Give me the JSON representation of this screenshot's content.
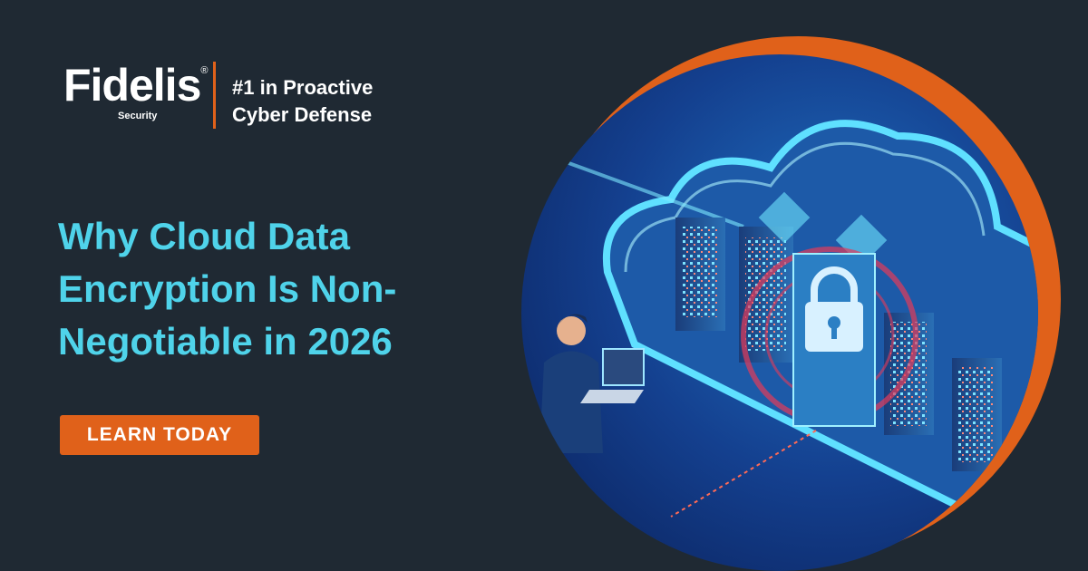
{
  "logo": {
    "brand": "Fidelis",
    "mark": "®",
    "sub": "Security"
  },
  "tagline": {
    "lines": [
      "#1 in Proactive",
      "Cyber Defense"
    ]
  },
  "headline": {
    "lines": [
      "Why Cloud Data",
      "Encryption Is Non-",
      "Negotiable in 2026"
    ]
  },
  "cta": {
    "label": "LEARN TODAY"
  }
}
